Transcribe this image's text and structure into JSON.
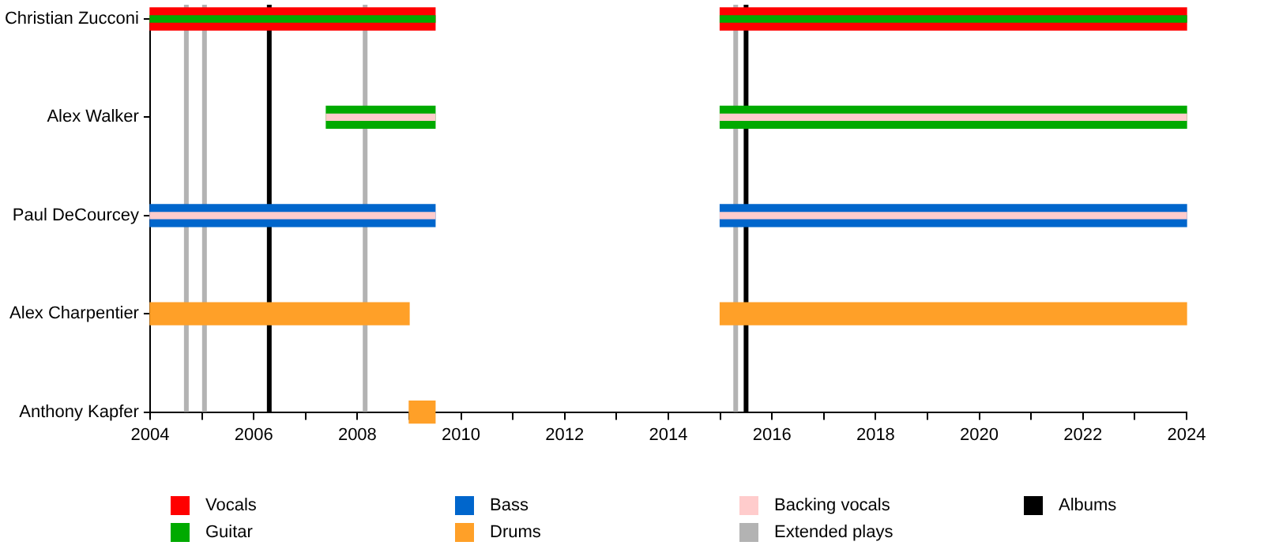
{
  "chart_data": {
    "type": "bar",
    "orientation": "horizontal",
    "categories": [
      "Christian Zucconi",
      "Alex Walker",
      "Paul DeCourcey",
      "Alex Charpentier",
      "Anthony Kapfer"
    ],
    "series": [
      {
        "name": "Vocals",
        "color": "#ff0000",
        "base": [
          2004,
          null,
          null,
          null,
          null
        ],
        "values": [
          5.5,
          null,
          null,
          null,
          null
        ]
      },
      {
        "color": "#ff0000",
        "base": [
          2015,
          null,
          null,
          null,
          null
        ],
        "values": [
          9,
          null,
          null,
          null,
          null
        ]
      },
      {
        "name": "Guitar",
        "color": "#00aa00",
        "base": [
          null,
          2007.4,
          null,
          null,
          null
        ],
        "values": [
          null,
          2.1,
          null,
          null,
          null
        ]
      },
      {
        "color": "#00aa00",
        "base": [
          null,
          2015,
          null,
          null,
          null
        ],
        "values": [
          null,
          9,
          null,
          null,
          null
        ]
      },
      {
        "color": "#00aa00",
        "base": [
          2004,
          null,
          null,
          null,
          null
        ],
        "values": [
          5.5,
          null,
          null,
          null,
          null
        ]
      },
      {
        "color": "#00aa00",
        "base": [
          2015,
          null,
          null,
          null,
          null
        ],
        "values": [
          9,
          null,
          null,
          null,
          null
        ]
      },
      {
        "name": "Bass",
        "color": "#0066cc",
        "base": [
          null,
          null,
          2004,
          null,
          null
        ],
        "values": [
          null,
          null,
          5.5,
          null,
          null
        ]
      },
      {
        "color": "#0066cc",
        "base": [
          null,
          null,
          2015,
          null,
          null
        ],
        "values": [
          null,
          null,
          9,
          null,
          null
        ]
      },
      {
        "name": "Drums",
        "color": "#ffa028",
        "base": [
          null,
          null,
          null,
          2004,
          2009
        ],
        "values": [
          null,
          null,
          null,
          5,
          0.5
        ]
      },
      {
        "color": "#ffa028",
        "base": [
          null,
          null,
          null,
          2015,
          null
        ],
        "values": [
          null,
          null,
          null,
          9,
          null
        ]
      },
      {
        "name": "Backing vocals",
        "color": "#ffcccc",
        "base": [
          null,
          2007.4,
          2004,
          null,
          null
        ],
        "values": [
          null,
          2.1,
          5.5,
          null,
          null
        ]
      },
      {
        "color": "#ffcccc",
        "base": [
          null,
          2015,
          2015,
          null,
          null
        ],
        "values": [
          null,
          9,
          9,
          null,
          null
        ]
      }
    ],
    "ref_lines": [
      {
        "axis": "x",
        "value": 2004.7,
        "label": "Extended plays",
        "color": "#b3b3b3"
      },
      {
        "axis": "x",
        "value": 2005.05,
        "color": "#b3b3b3"
      },
      {
        "axis": "x",
        "value": 2006.3,
        "label": "Albums",
        "color": "#000000"
      },
      {
        "axis": "x",
        "value": 2008.15,
        "color": "#b3b3b3"
      },
      {
        "axis": "x",
        "value": 2015.3,
        "color": "#b3b3b3"
      },
      {
        "axis": "x",
        "value": 2015.5,
        "color": "#000000"
      }
    ],
    "xlim": [
      2004,
      2024
    ],
    "xticks": [
      2004,
      {
        "value": 2005,
        "label": null
      },
      2006,
      {
        "value": 2007,
        "label": null
      },
      2008,
      {
        "value": 2009,
        "label": null
      },
      2010,
      {
        "value": 2011,
        "label": null
      },
      2012,
      {
        "value": 2013,
        "label": null
      },
      2014,
      {
        "value": 2015,
        "label": null
      },
      2016,
      {
        "value": 2017,
        "label": null
      },
      2018,
      {
        "value": 2019,
        "label": null
      },
      2020,
      {
        "value": 2021,
        "label": null
      },
      2022,
      {
        "value": 2023,
        "label": null
      },
      2024
    ],
    "grid": false,
    "legend": "bottom"
  }
}
